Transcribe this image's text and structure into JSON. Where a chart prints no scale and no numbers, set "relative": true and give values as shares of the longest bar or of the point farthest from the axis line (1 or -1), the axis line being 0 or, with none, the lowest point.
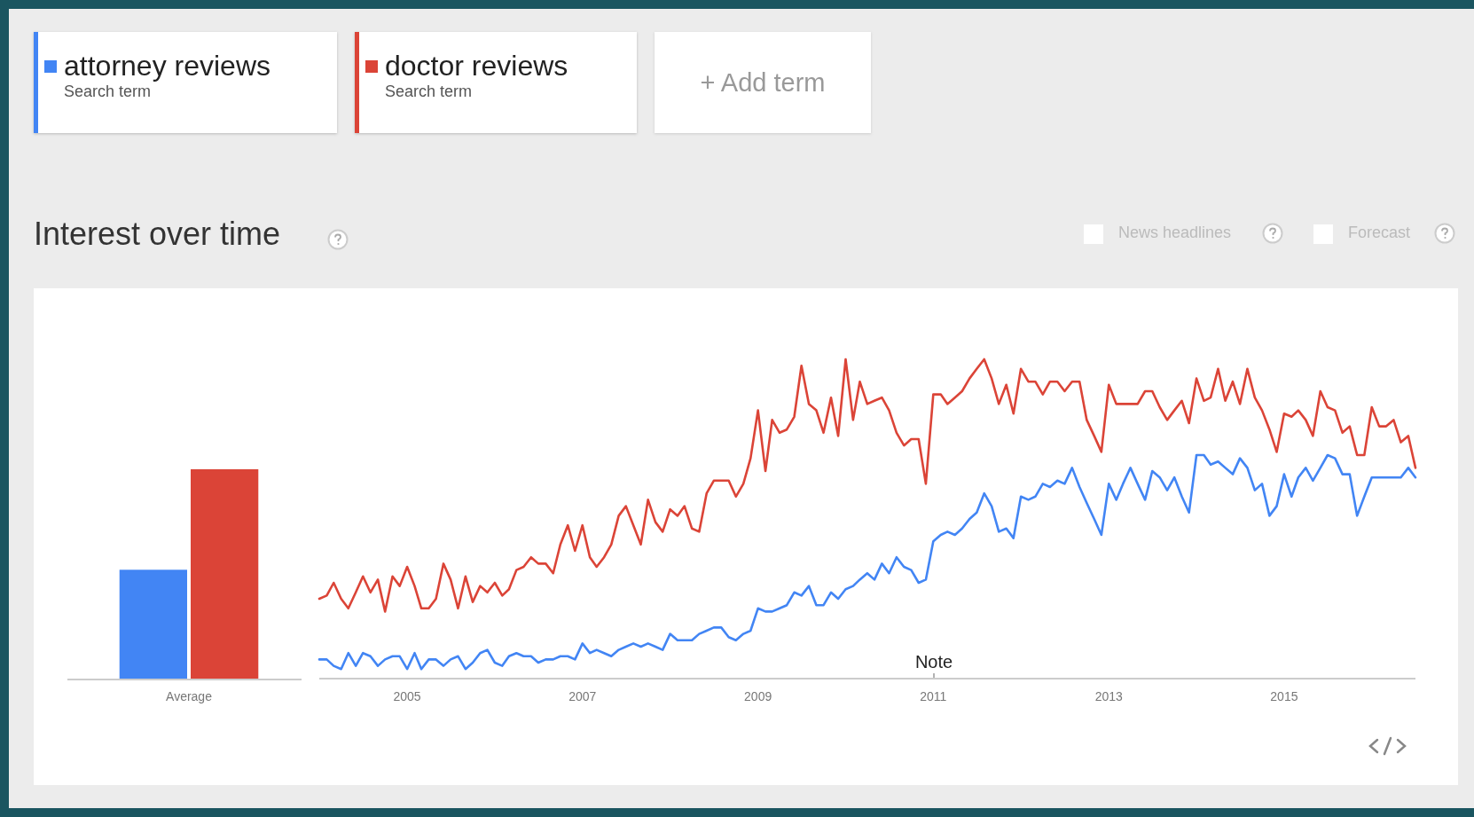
{
  "chart_data": [
    {
      "type": "bar",
      "relative": true,
      "categories": [
        null
      ],
      "xlabel": "Average",
      "series": [
        {
          "color": "#4285f4",
          "values": [
            0.52
          ]
        },
        {
          "color": "#db4437",
          "values": [
            1
          ]
        }
      ]
    },
    {
      "type": "line",
      "relative": true,
      "title": "Interest over time",
      "legend": "top left",
      "legend_title": "Search term",
      "annotations": [
        "+ Add term",
        "News headlines",
        "Forecast",
        "Note"
      ],
      "xlim": [
        "2004-01",
        "2016-07"
      ],
      "xticks": [
        "2005",
        "2007",
        "2009",
        "2011",
        "2013",
        "2015"
      ],
      "x": [
        "2004-01",
        "2004-02",
        "2004-03",
        "2004-04",
        "2004-05",
        "2004-06",
        "2004-07",
        "2004-08",
        "2004-09",
        "2004-10",
        "2004-11",
        "2004-12",
        "2005-01",
        "2005-02",
        "2005-03",
        "2005-04",
        "2005-05",
        "2005-06",
        "2005-07",
        "2005-08",
        "2005-09",
        "2005-10",
        "2005-11",
        "2005-12",
        "2006-01",
        "2006-02",
        "2006-03",
        "2006-04",
        "2006-05",
        "2006-06",
        "2006-07",
        "2006-08",
        "2006-09",
        "2006-10",
        "2006-11",
        "2006-12",
        "2007-01",
        "2007-02",
        "2007-03",
        "2007-04",
        "2007-05",
        "2007-06",
        "2007-07",
        "2007-08",
        "2007-09",
        "2007-10",
        "2007-11",
        "2007-12",
        "2008-01",
        "2008-02",
        "2008-03",
        "2008-04",
        "2008-05",
        "2008-06",
        "2008-07",
        "2008-08",
        "2008-09",
        "2008-10",
        "2008-11",
        "2008-12",
        "2009-01",
        "2009-02",
        "2009-03",
        "2009-04",
        "2009-05",
        "2009-06",
        "2009-07",
        "2009-08",
        "2009-09",
        "2009-10",
        "2009-11",
        "2009-12",
        "2010-01",
        "2010-02",
        "2010-03",
        "2010-04",
        "2010-05",
        "2010-06",
        "2010-07",
        "2010-08",
        "2010-09",
        "2010-10",
        "2010-11",
        "2010-12",
        "2011-01",
        "2011-02",
        "2011-03",
        "2011-04",
        "2011-05",
        "2011-06",
        "2011-07",
        "2011-08",
        "2011-09",
        "2011-10",
        "2011-11",
        "2011-12",
        "2012-01",
        "2012-02",
        "2012-03",
        "2012-04",
        "2012-05",
        "2012-06",
        "2012-07",
        "2012-08",
        "2012-09",
        "2012-10",
        "2012-11",
        "2012-12",
        "2013-01",
        "2013-02",
        "2013-03",
        "2013-04",
        "2013-05",
        "2013-06",
        "2013-07",
        "2013-08",
        "2013-09",
        "2013-10",
        "2013-11",
        "2013-12",
        "2014-01",
        "2014-02",
        "2014-03",
        "2014-04",
        "2014-05",
        "2014-06",
        "2014-07",
        "2014-08",
        "2014-09",
        "2014-10",
        "2014-11",
        "2014-12",
        "2015-01",
        "2015-02",
        "2015-03",
        "2015-04",
        "2015-05",
        "2015-06",
        "2015-07",
        "2015-08",
        "2015-09",
        "2015-10",
        "2015-11",
        "2015-12",
        "2016-01",
        "2016-02",
        "2016-03",
        "2016-04",
        "2016-05",
        "2016-06",
        "2016-07"
      ],
      "series": [
        {
          "name": "attorney reviews",
          "color": "#4285f4",
          "values": [
            0.06,
            0.06,
            0.04,
            0.03,
            0.08,
            0.04,
            0.08,
            0.07,
            0.04,
            0.06,
            0.07,
            0.07,
            0.03,
            0.08,
            0.03,
            0.06,
            0.06,
            0.04,
            0.06,
            0.07,
            0.03,
            0.05,
            0.08,
            0.09,
            0.05,
            0.04,
            0.07,
            0.08,
            0.07,
            0.07,
            0.05,
            0.06,
            0.06,
            0.07,
            0.07,
            0.06,
            0.11,
            0.08,
            0.09,
            0.08,
            0.07,
            0.09,
            0.1,
            0.11,
            0.1,
            0.11,
            0.1,
            0.09,
            0.14,
            0.12,
            0.12,
            0.12,
            0.14,
            0.15,
            0.16,
            0.16,
            0.13,
            0.12,
            0.14,
            0.15,
            0.22,
            0.21,
            0.21,
            0.22,
            0.23,
            0.27,
            0.26,
            0.29,
            0.23,
            0.23,
            0.27,
            0.25,
            0.28,
            0.29,
            0.31,
            0.33,
            0.31,
            0.36,
            0.33,
            0.38,
            0.35,
            0.34,
            0.3,
            0.31,
            0.43,
            0.45,
            0.46,
            0.45,
            0.47,
            0.5,
            0.52,
            0.58,
            0.54,
            0.46,
            0.47,
            0.44,
            0.57,
            0.56,
            0.57,
            0.61,
            0.6,
            0.62,
            0.61,
            0.66,
            0.6,
            0.55,
            0.5,
            0.45,
            0.61,
            0.56,
            0.61,
            0.66,
            0.61,
            0.56,
            0.65,
            0.63,
            0.59,
            0.63,
            0.57,
            0.52,
            0.7,
            0.7,
            0.67,
            0.68,
            0.66,
            0.64,
            0.69,
            0.66,
            0.59,
            0.61,
            0.51,
            0.54,
            0.64,
            0.57,
            0.63,
            0.66,
            0.62,
            0.66,
            0.7,
            0.69,
            0.64,
            0.64,
            0.51,
            0.57,
            0.63,
            0.63,
            0.63,
            0.63,
            0.63,
            0.66,
            0.63
          ]
        },
        {
          "name": "doctor reviews",
          "color": "#db4437",
          "values": [
            0.25,
            0.26,
            0.3,
            0.25,
            0.22,
            0.27,
            0.32,
            0.27,
            0.31,
            0.21,
            0.32,
            0.29,
            0.35,
            0.29,
            0.22,
            0.22,
            0.25,
            0.36,
            0.31,
            0.22,
            0.32,
            0.24,
            0.29,
            0.27,
            0.3,
            0.26,
            0.28,
            0.34,
            0.35,
            0.38,
            0.36,
            0.36,
            0.33,
            0.42,
            0.48,
            0.4,
            0.48,
            0.38,
            0.35,
            0.38,
            0.42,
            0.51,
            0.54,
            0.48,
            0.42,
            0.56,
            0.49,
            0.46,
            0.53,
            0.51,
            0.54,
            0.47,
            0.46,
            0.58,
            0.62,
            0.62,
            0.62,
            0.57,
            0.61,
            0.69,
            0.84,
            0.65,
            0.81,
            0.77,
            0.78,
            0.82,
            0.98,
            0.86,
            0.84,
            0.77,
            0.88,
            0.76,
            1.0,
            0.81,
            0.93,
            0.86,
            0.87,
            0.88,
            0.84,
            0.77,
            0.73,
            0.75,
            0.75,
            0.61,
            0.89,
            0.89,
            0.86,
            0.88,
            0.9,
            0.94,
            0.97,
            1.0,
            0.94,
            0.86,
            0.92,
            0.83,
            0.97,
            0.93,
            0.93,
            0.89,
            0.93,
            0.93,
            0.9,
            0.93,
            0.93,
            0.81,
            0.76,
            0.71,
            0.92,
            0.86,
            0.86,
            0.86,
            0.86,
            0.9,
            0.9,
            0.85,
            0.81,
            0.84,
            0.87,
            0.8,
            0.94,
            0.87,
            0.88,
            0.97,
            0.87,
            0.93,
            0.86,
            0.97,
            0.88,
            0.84,
            0.78,
            0.71,
            0.83,
            0.82,
            0.84,
            0.81,
            0.76,
            0.9,
            0.85,
            0.84,
            0.77,
            0.79,
            0.7,
            0.7,
            0.85,
            0.79,
            0.79,
            0.81,
            0.74,
            0.76,
            0.66
          ]
        }
      ]
    }
  ]
}
